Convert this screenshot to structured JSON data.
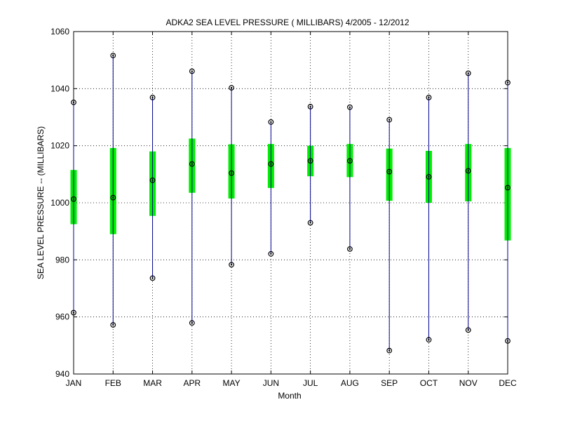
{
  "chart_data": {
    "type": "box",
    "title": "ADKA2  SEA LEVEL PRESSURE ( MILLIBARS) 4/2005 - 12/2012",
    "xlabel": "Month",
    "ylabel": "SEA LEVEL PRESSURE -- (MILLIBARS)",
    "ylim": [
      940,
      1060
    ],
    "yticks": [
      940,
      960,
      980,
      1000,
      1020,
      1040,
      1060
    ],
    "grid": true,
    "categories": [
      "JAN",
      "FEB",
      "MAR",
      "APR",
      "MAY",
      "JUN",
      "JUL",
      "AUG",
      "SEP",
      "OCT",
      "NOV",
      "DEC"
    ],
    "series": [
      {
        "min": 961.5,
        "max": 1035.2,
        "box_low": 992.5,
        "box_high": 1011.5,
        "mean": 1001.3
      },
      {
        "min": 957.2,
        "max": 1051.6,
        "box_low": 989.0,
        "box_high": 1019.2,
        "mean": 1001.8
      },
      {
        "min": 973.6,
        "max": 1036.9,
        "box_low": 995.4,
        "box_high": 1018.0,
        "mean": 1007.9
      },
      {
        "min": 957.9,
        "max": 1046.1,
        "box_low": 1003.5,
        "box_high": 1022.5,
        "mean": 1013.6
      },
      {
        "min": 978.3,
        "max": 1040.3,
        "box_low": 1001.5,
        "box_high": 1020.5,
        "mean": 1010.4
      },
      {
        "min": 982.1,
        "max": 1028.3,
        "box_low": 1005.2,
        "box_high": 1020.6,
        "mean": 1013.6
      },
      {
        "min": 993.0,
        "max": 1033.7,
        "box_low": 1009.3,
        "box_high": 1020.0,
        "mean": 1014.7
      },
      {
        "min": 983.8,
        "max": 1033.5,
        "box_low": 1009.0,
        "box_high": 1020.6,
        "mean": 1014.7
      },
      {
        "min": 948.2,
        "max": 1029.1,
        "box_low": 1000.7,
        "box_high": 1019.0,
        "mean": 1010.9
      },
      {
        "min": 952.0,
        "max": 1036.9,
        "box_low": 1000.0,
        "box_high": 1018.2,
        "mean": 1009.1
      },
      {
        "min": 955.4,
        "max": 1045.4,
        "box_low": 1000.5,
        "box_high": 1020.6,
        "mean": 1011.2
      },
      {
        "min": 951.6,
        "max": 1042.1,
        "box_low": 986.8,
        "box_high": 1019.2,
        "mean": 1005.3
      }
    ],
    "colors": {
      "whisker": "#00008f",
      "box": "#00ee00",
      "marker": "#000000"
    }
  }
}
